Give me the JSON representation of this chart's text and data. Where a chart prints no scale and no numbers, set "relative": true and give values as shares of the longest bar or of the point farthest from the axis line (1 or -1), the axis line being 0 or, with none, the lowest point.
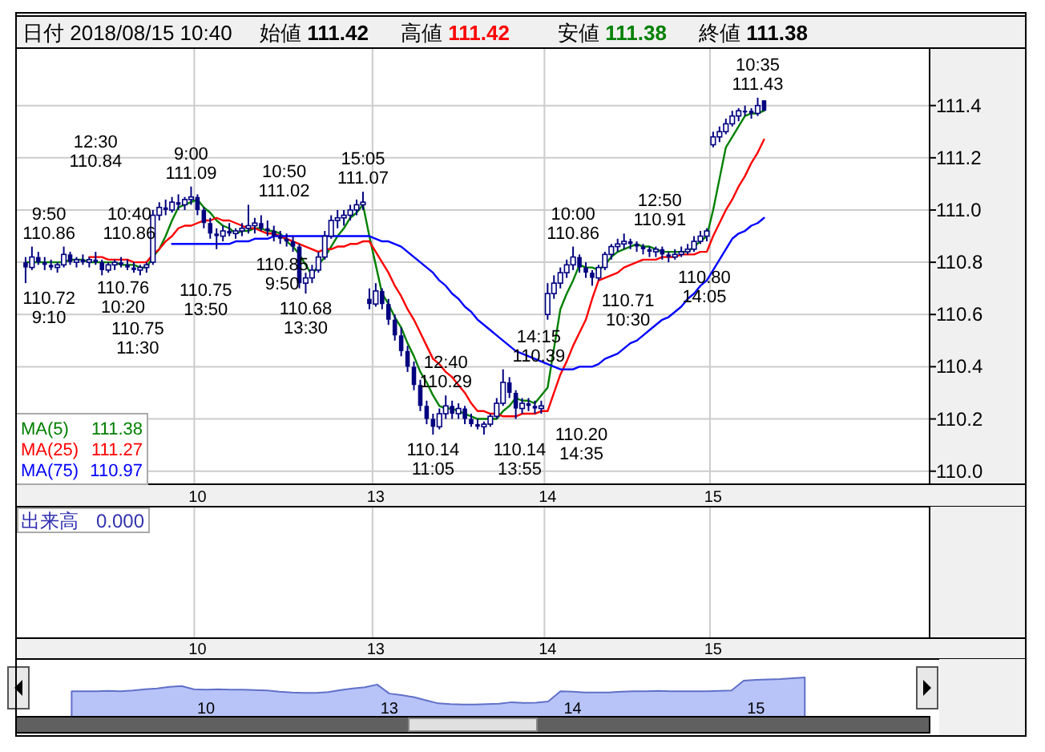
{
  "chart_data": [
    {
      "type": "candlestick",
      "title": "日付 2018/08/15 10:40",
      "color": "#000080",
      "categories": [
        null,
        null,
        null,
        null,
        null,
        null,
        null,
        null,
        null,
        null,
        null,
        null,
        null,
        null,
        null,
        null,
        null,
        null,
        null,
        null,
        null,
        null,
        null,
        null,
        null,
        null,
        null,
        "10",
        null,
        null,
        null,
        null,
        null,
        null,
        null,
        null,
        null,
        null,
        null,
        null,
        null,
        null,
        null,
        null,
        null,
        null,
        null,
        null,
        null,
        null,
        null,
        null,
        null,
        null,
        null,
        "13",
        null,
        null,
        null,
        null,
        null,
        null,
        null,
        null,
        null,
        null,
        null,
        null,
        null,
        null,
        null,
        null,
        null,
        null,
        null,
        null,
        null,
        null,
        null,
        null,
        null,
        null,
        "14",
        null,
        null,
        null,
        null,
        null,
        null,
        null,
        null,
        null,
        null,
        null,
        null,
        null,
        null,
        null,
        null,
        null,
        null,
        null,
        null,
        null,
        null,
        null,
        null,
        null,
        "15",
        null,
        null,
        null,
        null,
        null,
        null,
        null,
        null
      ],
      "ohlc": [
        [
          110.8,
          110.82,
          110.72,
          110.78
        ],
        [
          110.78,
          110.86,
          110.77,
          110.82
        ],
        [
          110.82,
          110.84,
          110.79,
          110.8
        ],
        [
          110.8,
          110.82,
          110.77,
          110.79
        ],
        [
          110.79,
          110.81,
          110.77,
          110.78
        ],
        [
          110.78,
          110.8,
          110.76,
          110.79
        ],
        [
          110.79,
          110.86,
          110.78,
          110.83
        ],
        [
          110.83,
          110.84,
          110.79,
          110.8
        ],
        [
          110.8,
          110.82,
          110.78,
          110.81
        ],
        [
          110.81,
          110.83,
          110.79,
          110.8
        ],
        [
          110.8,
          110.82,
          110.78,
          110.81
        ],
        [
          110.81,
          110.84,
          110.79,
          110.8
        ],
        [
          110.8,
          110.81,
          110.75,
          110.77
        ],
        [
          110.77,
          110.8,
          110.76,
          110.79
        ],
        [
          110.79,
          110.81,
          110.77,
          110.8
        ],
        [
          110.8,
          110.82,
          110.78,
          110.79
        ],
        [
          110.79,
          110.81,
          110.77,
          110.78
        ],
        [
          110.78,
          110.8,
          110.76,
          110.77
        ],
        [
          110.77,
          110.79,
          110.75,
          110.78
        ],
        [
          110.78,
          110.8,
          110.76,
          110.79
        ],
        [
          110.8,
          111.0,
          110.79,
          110.98
        ],
        [
          110.98,
          111.03,
          110.96,
          111.01
        ],
        [
          111.01,
          111.04,
          110.98,
          111.0
        ],
        [
          111.0,
          111.05,
          110.99,
          111.03
        ],
        [
          111.03,
          111.06,
          111.0,
          111.02
        ],
        [
          111.02,
          111.05,
          111.0,
          111.04
        ],
        [
          111.04,
          111.09,
          111.02,
          111.05
        ],
        [
          111.05,
          111.06,
          110.98,
          111.0
        ],
        [
          111.0,
          111.01,
          110.93,
          110.95
        ],
        [
          110.95,
          110.97,
          110.89,
          110.91
        ],
        [
          110.91,
          110.93,
          110.85,
          110.9
        ],
        [
          110.9,
          110.94,
          110.88,
          110.92
        ],
        [
          110.92,
          110.95,
          110.9,
          110.91
        ],
        [
          110.91,
          110.93,
          110.89,
          110.92
        ],
        [
          110.92,
          110.95,
          110.9,
          110.93
        ],
        [
          110.93,
          111.02,
          110.91,
          110.94
        ],
        [
          110.94,
          110.97,
          110.91,
          110.95
        ],
        [
          110.95,
          110.98,
          110.92,
          110.93
        ],
        [
          110.93,
          110.96,
          110.9,
          110.92
        ],
        [
          110.92,
          110.94,
          110.88,
          110.9
        ],
        [
          110.9,
          110.92,
          110.87,
          110.89
        ],
        [
          110.89,
          110.91,
          110.86,
          110.88
        ],
        [
          110.88,
          110.9,
          110.84,
          110.86
        ],
        [
          110.86,
          110.87,
          110.7,
          110.72
        ],
        [
          110.72,
          110.76,
          110.68,
          110.74
        ],
        [
          110.74,
          110.79,
          110.72,
          110.77
        ],
        [
          110.77,
          110.84,
          110.76,
          110.82
        ],
        [
          110.82,
          110.92,
          110.81,
          110.9
        ],
        [
          110.9,
          110.98,
          110.89,
          110.96
        ],
        [
          110.96,
          111.0,
          110.93,
          110.97
        ],
        [
          110.97,
          111.0,
          110.94,
          110.98
        ],
        [
          110.98,
          111.02,
          110.96,
          111.0
        ],
        [
          111.0,
          111.04,
          110.98,
          111.02
        ],
        [
          111.02,
          111.07,
          111.0,
          111.03
        ],
        [
          110.66,
          110.7,
          110.62,
          110.64
        ],
        [
          110.64,
          110.72,
          110.63,
          110.69
        ],
        [
          110.69,
          110.7,
          110.62,
          110.64
        ],
        [
          110.64,
          110.66,
          110.56,
          110.58
        ],
        [
          110.58,
          110.6,
          110.5,
          110.52
        ],
        [
          110.52,
          110.55,
          110.44,
          110.46
        ],
        [
          110.46,
          110.48,
          110.38,
          110.4
        ],
        [
          110.4,
          110.42,
          110.31,
          110.33
        ],
        [
          110.33,
          110.35,
          110.23,
          110.25
        ],
        [
          110.25,
          110.27,
          110.18,
          110.2
        ],
        [
          110.2,
          110.22,
          110.14,
          110.17
        ],
        [
          110.17,
          110.24,
          110.16,
          110.22
        ],
        [
          110.22,
          110.29,
          110.2,
          110.25
        ],
        [
          110.25,
          110.27,
          110.2,
          110.22
        ],
        [
          110.22,
          110.26,
          110.2,
          110.24
        ],
        [
          110.24,
          110.25,
          110.18,
          110.2
        ],
        [
          110.2,
          110.22,
          110.17,
          110.18
        ],
        [
          110.18,
          110.2,
          110.16,
          110.17
        ],
        [
          110.17,
          110.19,
          110.14,
          110.18
        ],
        [
          110.18,
          110.22,
          110.17,
          110.21
        ],
        [
          110.21,
          110.28,
          110.2,
          110.26
        ],
        [
          110.26,
          110.39,
          110.25,
          110.34
        ],
        [
          110.34,
          110.36,
          110.28,
          110.3
        ],
        [
          110.3,
          110.31,
          110.2,
          110.24
        ],
        [
          110.24,
          110.28,
          110.22,
          110.26
        ],
        [
          110.26,
          110.28,
          110.23,
          110.25
        ],
        [
          110.25,
          110.27,
          110.22,
          110.24
        ],
        [
          110.24,
          110.27,
          110.22,
          110.25
        ],
        [
          110.6,
          110.72,
          110.58,
          110.68
        ],
        [
          110.68,
          110.75,
          110.66,
          110.72
        ],
        [
          110.72,
          110.78,
          110.7,
          110.76
        ],
        [
          110.76,
          110.81,
          110.74,
          110.79
        ],
        [
          110.79,
          110.86,
          110.77,
          110.82
        ],
        [
          110.82,
          110.83,
          110.76,
          110.78
        ],
        [
          110.78,
          110.8,
          110.74,
          110.76
        ],
        [
          110.76,
          110.77,
          110.71,
          110.74
        ],
        [
          110.74,
          110.79,
          110.73,
          110.78
        ],
        [
          110.78,
          110.84,
          110.77,
          110.83
        ],
        [
          110.83,
          110.87,
          110.81,
          110.86
        ],
        [
          110.86,
          110.89,
          110.84,
          110.87
        ],
        [
          110.87,
          110.91,
          110.85,
          110.88
        ],
        [
          110.88,
          110.89,
          110.85,
          110.87
        ],
        [
          110.87,
          110.88,
          110.84,
          110.86
        ],
        [
          110.86,
          110.87,
          110.83,
          110.85
        ],
        [
          110.85,
          110.86,
          110.82,
          110.84
        ],
        [
          110.84,
          110.86,
          110.82,
          110.85
        ],
        [
          110.85,
          110.86,
          110.81,
          110.83
        ],
        [
          110.83,
          110.84,
          110.8,
          110.82
        ],
        [
          110.82,
          110.85,
          110.81,
          110.83
        ],
        [
          110.83,
          110.86,
          110.82,
          110.84
        ],
        [
          110.84,
          110.87,
          110.83,
          110.85
        ],
        [
          110.85,
          110.9,
          110.84,
          110.88
        ],
        [
          110.88,
          110.92,
          110.87,
          110.9
        ],
        [
          110.9,
          110.93,
          110.88,
          110.92
        ],
        [
          111.25,
          111.3,
          111.24,
          111.28
        ],
        [
          111.28,
          111.32,
          111.26,
          111.3
        ],
        [
          111.3,
          111.35,
          111.29,
          111.33
        ],
        [
          111.33,
          111.38,
          111.32,
          111.36
        ],
        [
          111.36,
          111.39,
          111.34,
          111.38
        ],
        [
          111.38,
          111.4,
          111.36,
          111.38
        ],
        [
          111.38,
          111.39,
          111.35,
          111.37
        ],
        [
          111.37,
          111.43,
          111.36,
          111.4
        ],
        [
          111.42,
          111.42,
          111.38,
          111.38
        ]
      ],
      "value_labels": [
        "110.72\n9:10",
        "9:50\n110.86",
        null,
        null,
        null,
        "110.76\n10:20",
        "10:40\n110.86",
        null,
        null,
        null,
        null,
        "12:30\n110.84",
        "110.75\n11:30",
        null,
        null,
        null,
        null,
        null,
        "110.75\n13:50",
        null,
        null,
        null,
        null,
        null,
        null,
        null,
        "9:00\n111.09",
        null,
        null,
        null,
        "110.85\n9:50",
        null,
        null,
        null,
        null,
        "10:50\n111.02",
        null,
        null,
        null,
        null,
        null,
        null,
        null,
        null,
        "110.68\n13:30",
        null,
        null,
        null,
        null,
        null,
        null,
        null,
        null,
        "15:05\n111.07",
        null,
        null,
        null,
        null,
        null,
        null,
        null,
        null,
        null,
        null,
        "110.14\n11:05",
        null,
        "12:40\n110.29",
        null,
        null,
        null,
        null,
        null,
        "110.14\n13:55",
        null,
        null,
        "14:15\n110.39",
        null,
        "110.20\n14:35",
        null,
        null,
        null,
        null,
        null,
        null,
        null,
        null,
        "10:00\n110.86",
        null,
        null,
        "110.71\n10:30",
        null,
        null,
        null,
        null,
        "12:50\n110.91",
        null,
        null,
        null,
        null,
        null,
        null,
        "110.80\n14:05",
        null,
        null,
        null,
        null,
        null,
        null,
        null,
        null,
        null,
        null,
        null,
        null,
        null,
        "10:35\n111.43",
        null
      ],
      "series": [
        {
          "name": "MA(5)",
          "type": "line",
          "color": "#008000",
          "values": [
            110.8,
            110.8,
            110.8,
            110.8,
            110.8,
            110.8,
            110.8,
            110.81,
            110.81,
            110.81,
            110.8,
            110.8,
            110.8,
            110.8,
            110.8,
            110.79,
            110.79,
            110.79,
            110.78,
            110.78,
            110.82,
            110.85,
            110.9,
            110.96,
            111.01,
            111.02,
            111.03,
            111.04,
            111.01,
            110.99,
            110.96,
            110.94,
            110.93,
            110.91,
            110.92,
            110.92,
            110.93,
            110.93,
            110.92,
            110.92,
            110.91,
            110.88,
            110.86,
            110.83,
            110.79,
            110.75,
            110.79,
            110.82,
            110.86,
            110.9,
            110.93,
            110.97,
            110.99,
            111.02,
            110.9,
            110.79,
            110.68,
            110.64,
            110.59,
            110.55,
            110.49,
            110.44,
            110.38,
            110.34,
            110.29,
            110.25,
            110.24,
            110.24,
            110.23,
            110.22,
            110.21,
            110.2,
            110.2,
            110.2,
            110.2,
            110.23,
            110.25,
            110.28,
            110.27,
            110.27,
            110.26,
            110.29,
            110.32,
            110.47,
            110.62,
            110.68,
            110.73,
            110.79,
            110.78,
            110.78,
            110.77,
            110.79,
            110.82,
            110.84,
            110.85,
            110.86,
            110.87,
            110.86,
            110.86,
            110.85,
            110.84,
            110.84,
            110.84,
            110.84,
            110.84,
            110.86,
            110.88,
            110.9,
            111.0,
            111.12,
            111.24,
            111.28,
            111.32,
            111.36,
            111.37,
            111.37,
            111.38
          ]
        },
        {
          "name": "MA(25)",
          "type": "line",
          "color": "#ff0000",
          "values": [
            null,
            null,
            null,
            null,
            null,
            null,
            null,
            null,
            null,
            null,
            110.82,
            110.82,
            110.82,
            110.81,
            110.81,
            110.81,
            110.81,
            110.8,
            110.8,
            110.8,
            110.83,
            110.85,
            110.88,
            110.9,
            110.93,
            110.94,
            110.94,
            110.95,
            110.96,
            110.96,
            110.97,
            110.96,
            110.96,
            110.95,
            110.94,
            110.93,
            110.93,
            110.92,
            110.91,
            110.91,
            110.9,
            110.89,
            110.88,
            110.87,
            110.86,
            110.85,
            110.84,
            110.85,
            110.85,
            110.86,
            110.86,
            110.87,
            110.87,
            110.88,
            110.88,
            110.84,
            110.8,
            110.76,
            110.71,
            110.67,
            110.62,
            110.58,
            110.53,
            110.48,
            110.43,
            110.41,
            110.38,
            110.36,
            110.33,
            110.3,
            110.26,
            110.23,
            110.23,
            110.22,
            110.22,
            110.21,
            110.21,
            110.21,
            110.22,
            110.22,
            110.22,
            110.23,
            110.23,
            110.3,
            110.37,
            110.42,
            110.48,
            110.53,
            110.58,
            110.66,
            110.73,
            110.74,
            110.75,
            110.76,
            110.78,
            110.79,
            110.8,
            110.81,
            110.81,
            110.81,
            110.82,
            110.82,
            110.82,
            110.83,
            110.83,
            110.83,
            110.84,
            110.84,
            110.9,
            110.95,
            111.0,
            111.04,
            111.09,
            111.13,
            111.18,
            111.22,
            111.27
          ]
        },
        {
          "name": "MA(75)",
          "type": "line",
          "color": "#0000ff",
          "values": [
            null,
            null,
            null,
            null,
            null,
            null,
            null,
            null,
            null,
            null,
            null,
            null,
            null,
            null,
            null,
            null,
            null,
            null,
            null,
            null,
            null,
            null,
            null,
            110.87,
            110.87,
            110.87,
            110.87,
            110.87,
            110.87,
            110.87,
            110.87,
            110.87,
            110.87,
            110.88,
            110.88,
            110.88,
            110.89,
            110.89,
            110.89,
            110.9,
            110.9,
            110.9,
            110.9,
            110.9,
            110.9,
            110.9,
            110.9,
            110.9,
            110.9,
            110.9,
            110.9,
            110.9,
            110.9,
            110.9,
            110.9,
            110.89,
            110.88,
            110.88,
            110.87,
            110.86,
            110.84,
            110.82,
            110.8,
            110.78,
            110.76,
            110.73,
            110.71,
            110.68,
            110.66,
            110.63,
            110.61,
            110.58,
            110.56,
            110.54,
            110.52,
            110.5,
            110.48,
            110.46,
            110.45,
            110.44,
            110.43,
            110.42,
            110.41,
            110.4,
            110.39,
            110.39,
            110.39,
            110.4,
            110.4,
            110.4,
            110.41,
            110.43,
            110.44,
            110.45,
            110.47,
            110.49,
            110.5,
            110.52,
            110.54,
            110.56,
            110.58,
            110.59,
            110.61,
            110.63,
            110.66,
            110.68,
            110.71,
            110.73,
            110.77,
            110.81,
            110.85,
            110.89,
            110.91,
            110.92,
            110.94,
            110.95,
            110.97
          ]
        }
      ],
      "annotations": [
        "始値 111.42",
        "高値 111.42",
        "安値 111.38",
        "終値 111.38",
        "111.38",
        "111.27",
        "110.97"
      ],
      "ylim": [
        109.95,
        111.62
      ],
      "yticks": [
        {
          "value": 110,
          "label": "110.0"
        },
        110.2,
        110.4,
        110.6,
        110.8,
        {
          "value": 111,
          "label": "111.0"
        },
        111.2,
        111.4
      ],
      "grid": true,
      "legend": "bottom left"
    },
    {
      "type": "other",
      "annotations": [
        "出来高",
        "0.000"
      ],
      "categories": [
        null,
        null,
        null,
        null,
        null,
        null,
        null,
        null,
        null,
        null,
        null,
        null,
        null,
        null,
        null,
        null,
        null,
        null,
        null,
        null,
        null,
        null,
        null,
        null,
        null,
        null,
        null,
        "10",
        null,
        null,
        null,
        null,
        null,
        null,
        null,
        null,
        null,
        null,
        null,
        null,
        null,
        null,
        null,
        null,
        null,
        null,
        null,
        null,
        null,
        null,
        null,
        null,
        null,
        null,
        null,
        "13",
        null,
        null,
        null,
        null,
        null,
        null,
        null,
        null,
        null,
        null,
        null,
        null,
        null,
        null,
        null,
        null,
        null,
        null,
        null,
        null,
        null,
        null,
        null,
        null,
        null,
        null,
        "14",
        null,
        null,
        null,
        null,
        null,
        null,
        null,
        null,
        null,
        null,
        null,
        null,
        null,
        null,
        null,
        null,
        null,
        null,
        null,
        null,
        null,
        null,
        null,
        null,
        null,
        "15",
        null,
        null,
        null,
        null,
        null,
        null,
        null,
        null
      ]
    },
    {
      "type": "area",
      "relative": true,
      "color": "#b8c4f8",
      "categories": [
        null,
        null,
        null,
        null,
        null,
        null,
        null,
        null,
        null,
        null,
        null,
        "10",
        null,
        null,
        null,
        null,
        null,
        null,
        null,
        null,
        null,
        null,
        null,
        null,
        null,
        null,
        "13",
        null,
        null,
        null,
        null,
        null,
        null,
        null,
        null,
        null,
        null,
        null,
        null,
        null,
        null,
        "14",
        null,
        null,
        null,
        null,
        null,
        null,
        null,
        null,
        null,
        null,
        null,
        null,
        null,
        null,
        "15",
        null,
        null,
        null,
        null
      ],
      "values": [
        0.65,
        0.65,
        0.65,
        0.66,
        0.65,
        0.67,
        0.7,
        0.72,
        0.76,
        0.78,
        0.7,
        0.69,
        0.7,
        0.69,
        0.69,
        0.68,
        0.67,
        0.64,
        0.62,
        0.61,
        0.61,
        0.63,
        0.68,
        0.72,
        0.75,
        0.82,
        0.59,
        0.55,
        0.5,
        0.42,
        0.34,
        0.32,
        0.31,
        0.31,
        0.32,
        0.33,
        0.37,
        0.35,
        0.36,
        0.39,
        0.65,
        0.64,
        0.62,
        0.62,
        0.62,
        0.64,
        0.65,
        0.65,
        0.66,
        0.65,
        0.65,
        0.65,
        0.65,
        0.66,
        0.67,
        0.92,
        0.94,
        0.95,
        0.96,
        0.98,
        1.0
      ],
      "tick_labels": "x"
    }
  ]
}
